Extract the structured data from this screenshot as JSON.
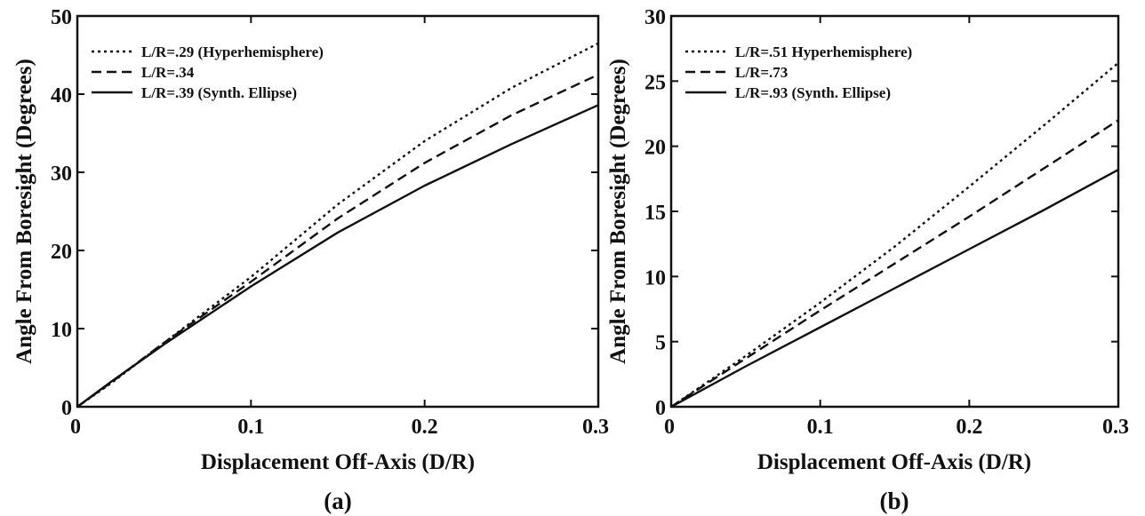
{
  "chart_data": [
    {
      "type": "line",
      "panel_label": "(a)",
      "xlabel": "Displacement Off-Axis (D/R)",
      "ylabel": "Angle From Boresight (Degrees)",
      "xlim": [
        0,
        0.3
      ],
      "ylim": [
        0,
        50
      ],
      "xticks": [
        0,
        0.1,
        0.2,
        0.3
      ],
      "xtick_labels": [
        "0",
        "0.1",
        "0.2",
        "0.3"
      ],
      "yticks": [
        0,
        10,
        20,
        30,
        40,
        50
      ],
      "ytick_labels": [
        "0",
        "10",
        "20",
        "30",
        "40",
        "50"
      ],
      "grid": false,
      "legend_position": "top-left",
      "series": [
        {
          "name": "L/R=.29 (Hyperhemisphere)",
          "style": "dotted",
          "x": [
            0,
            0.02,
            0.05,
            0.1,
            0.15,
            0.2,
            0.25,
            0.3
          ],
          "y": [
            0,
            3.1,
            8.2,
            16.6,
            25.9,
            34.0,
            40.8,
            46.5
          ]
        },
        {
          "name": "L/R=.34",
          "style": "dashed",
          "x": [
            0,
            0.02,
            0.05,
            0.1,
            0.15,
            0.2,
            0.25,
            0.3
          ],
          "y": [
            0,
            3.2,
            8.2,
            16.0,
            24.1,
            31.2,
            37.3,
            42.5
          ]
        },
        {
          "name": "L/R=.39 (Synth. Ellipse)",
          "style": "solid",
          "x": [
            0,
            0.02,
            0.05,
            0.1,
            0.15,
            0.2,
            0.25,
            0.3
          ],
          "y": [
            0,
            3.3,
            8.0,
            15.4,
            22.3,
            28.3,
            33.6,
            38.6
          ]
        }
      ]
    },
    {
      "type": "line",
      "panel_label": "(b)",
      "xlabel": "Displacement Off-Axis (D/R)",
      "ylabel": "Angle From Boresight (Degrees)",
      "xlim": [
        0,
        0.3
      ],
      "ylim": [
        0,
        30
      ],
      "xticks": [
        0,
        0.1,
        0.2,
        0.3
      ],
      "xtick_labels": [
        "0",
        "0.1",
        "0.2",
        "0.3"
      ],
      "yticks": [
        0,
        5,
        10,
        15,
        20,
        25,
        30
      ],
      "ytick_labels": [
        "0",
        "5",
        "10",
        "15",
        "20",
        "25",
        "30"
      ],
      "grid": false,
      "legend_position": "top-left",
      "series": [
        {
          "name": "L/R=.51 Hyperhemisphere)",
          "style": "dotted",
          "x": [
            0,
            0.05,
            0.1,
            0.15,
            0.2,
            0.25,
            0.3
          ],
          "y": [
            0,
            3.9,
            8.0,
            12.3,
            16.9,
            21.6,
            26.4
          ]
        },
        {
          "name": "L/R=.73",
          "style": "dashed",
          "x": [
            0,
            0.05,
            0.1,
            0.15,
            0.2,
            0.25,
            0.3
          ],
          "y": [
            0,
            3.7,
            7.4,
            11.0,
            14.6,
            18.3,
            22.0
          ]
        },
        {
          "name": "L/R=.93 (Synth. Ellipse)",
          "style": "solid",
          "x": [
            0,
            0.05,
            0.1,
            0.15,
            0.2,
            0.25,
            0.3
          ],
          "y": [
            0,
            3.1,
            6.1,
            9.1,
            12.1,
            15.1,
            18.2
          ]
        }
      ]
    }
  ]
}
